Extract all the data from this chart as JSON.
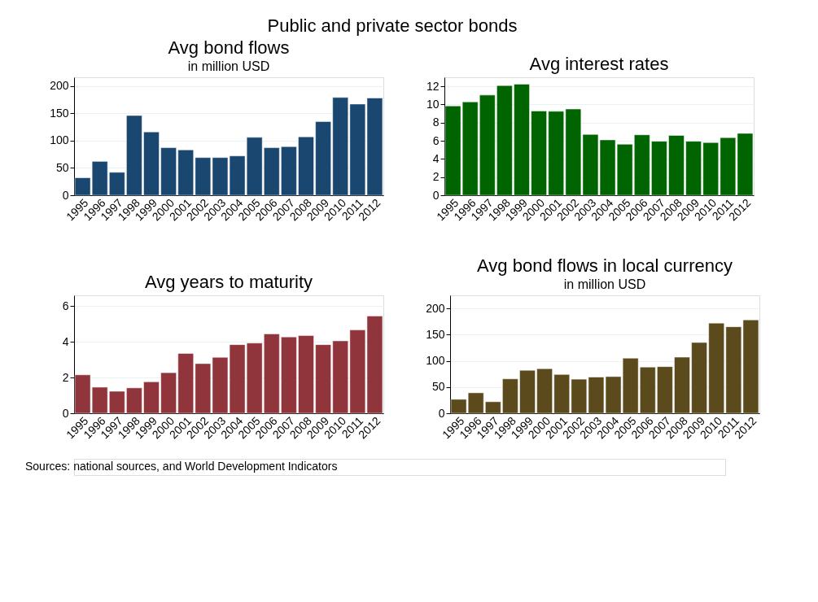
{
  "chart_data": [
    {
      "type": "other",
      "title": "Public and private sector bonds",
      "annotations": [
        "Sources: national sources, and World Development Indicators"
      ]
    },
    {
      "type": "bar",
      "title": "Avg bond flows",
      "subtitle": "in million USD",
      "categories": [
        "1995",
        "1996",
        "1997",
        "1998",
        "1999",
        "2000",
        "2001",
        "2002",
        "2003",
        "2004",
        "2005",
        "2006",
        "2007",
        "2008",
        "2009",
        "2010",
        "2011",
        "2012"
      ],
      "color": "#1a476f",
      "values": [
        32,
        62,
        42,
        146,
        116,
        87,
        83,
        69,
        69,
        72,
        106,
        87,
        89,
        107,
        135,
        179,
        167,
        178
      ],
      "ylim": [
        0,
        216
      ],
      "yticks": [
        0,
        50,
        100,
        150,
        200
      ],
      "grid": "y"
    },
    {
      "type": "bar",
      "title": "Avg interest rates",
      "categories": [
        "1995",
        "1996",
        "1997",
        "1998",
        "1999",
        "2000",
        "2001",
        "2002",
        "2003",
        "2004",
        "2005",
        "2006",
        "2007",
        "2008",
        "2009",
        "2010",
        "2011",
        "2012"
      ],
      "color": "#006400",
      "values": [
        9.84,
        10.28,
        11.04,
        12.09,
        12.24,
        9.29,
        9.25,
        9.5,
        6.7,
        6.1,
        5.62,
        6.66,
        5.95,
        6.59,
        5.95,
        5.81,
        6.35,
        6.82
      ],
      "ylim": [
        0,
        13
      ],
      "yticks": [
        0,
        2,
        4,
        6,
        8,
        10,
        12
      ],
      "grid": "y"
    },
    {
      "type": "bar",
      "title": "Avg years to maturity",
      "categories": [
        "1995",
        "1996",
        "1997",
        "1998",
        "1999",
        "2000",
        "2001",
        "2002",
        "2003",
        "2004",
        "2005",
        "2006",
        "2007",
        "2008",
        "2009",
        "2010",
        "2011",
        "2012"
      ],
      "color": "#90353b",
      "values": [
        2.15,
        1.46,
        1.23,
        1.42,
        1.76,
        2.27,
        3.35,
        2.78,
        3.13,
        3.84,
        3.93,
        4.44,
        4.27,
        4.35,
        3.84,
        4.05,
        4.66,
        5.44
      ],
      "ylim": [
        0,
        6.6
      ],
      "yticks": [
        0,
        2,
        4,
        6
      ],
      "grid": "y"
    },
    {
      "type": "bar",
      "title": "Avg bond flows in local currency",
      "subtitle": "in million USD",
      "categories": [
        "1995",
        "1996",
        "1997",
        "1998",
        "1999",
        "2000",
        "2001",
        "2002",
        "2003",
        "2004",
        "2005",
        "2006",
        "2007",
        "2008",
        "2009",
        "2010",
        "2011",
        "2012"
      ],
      "color": "#5b4a1c",
      "values": [
        26.6,
        39,
        22,
        65.6,
        82,
        85,
        74,
        65,
        69,
        70,
        105,
        88,
        89,
        107,
        135,
        172,
        165,
        178
      ],
      "ylim": [
        0,
        225
      ],
      "yticks": [
        0,
        50,
        100,
        150,
        200
      ],
      "grid": "y"
    }
  ]
}
